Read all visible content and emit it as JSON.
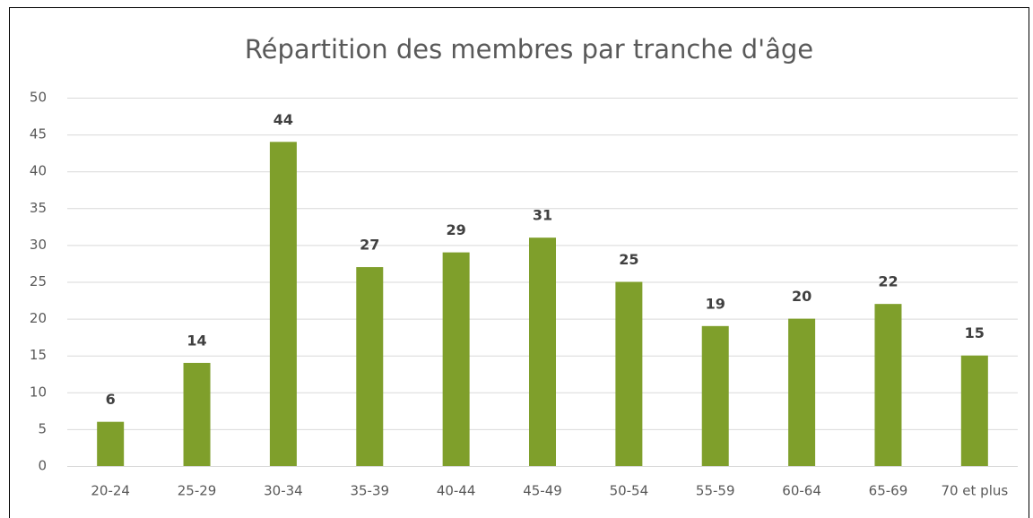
{
  "chart_data": {
    "type": "bar",
    "title": "Répartition des membres par tranche d'âge",
    "categories": [
      "20-24",
      "25-29",
      "30-34",
      "35-39",
      "40-44",
      "45-49",
      "50-54",
      "55-59",
      "60-64",
      "65-69",
      "70 et plus"
    ],
    "values": [
      6,
      14,
      44,
      27,
      29,
      31,
      25,
      19,
      20,
      22,
      15
    ],
    "color": "#7f9f2b",
    "ylim": [
      0,
      50
    ],
    "yticks": [
      0,
      5,
      10,
      15,
      20,
      25,
      30,
      35,
      40,
      45,
      50
    ],
    "grid": true,
    "data_labels": true
  }
}
